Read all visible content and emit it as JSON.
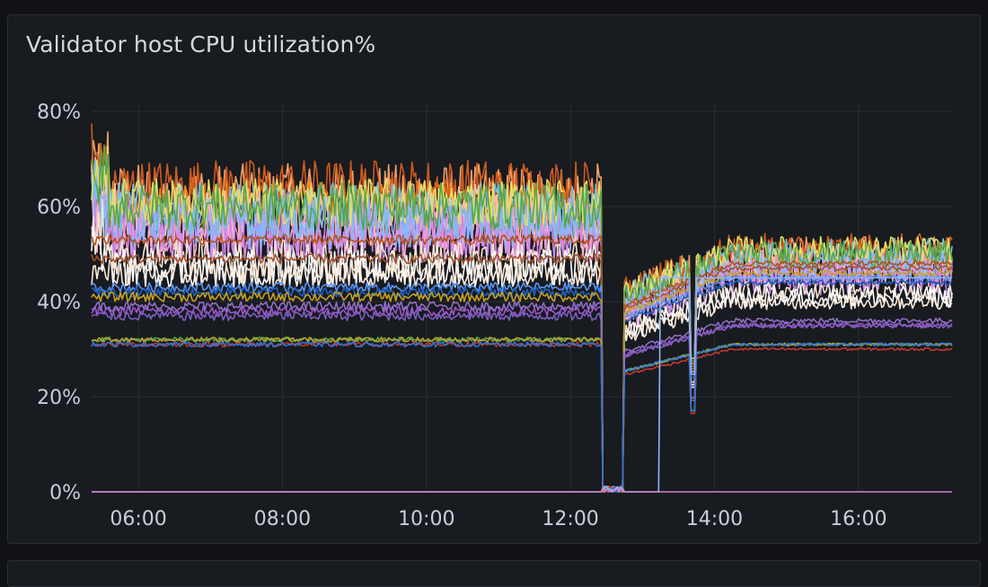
{
  "panel": {
    "title": "Validator host CPU utilization%"
  },
  "chart_data": {
    "type": "line",
    "title": "Validator host CPU utilization%",
    "xlabel": "",
    "ylabel": "",
    "x_unit": "hour of day",
    "xlim": [
      5.35,
      17.3
    ],
    "ylim": [
      0,
      80
    ],
    "x_ticks": [
      {
        "value": 6,
        "label": "06:00"
      },
      {
        "value": 8,
        "label": "08:00"
      },
      {
        "value": 10,
        "label": "10:00"
      },
      {
        "value": 12,
        "label": "12:00"
      },
      {
        "value": 14,
        "label": "14:00"
      },
      {
        "value": 16,
        "label": "16:00"
      }
    ],
    "y_ticks": [
      {
        "value": 0,
        "label": "0%"
      },
      {
        "value": 20,
        "label": "20%"
      },
      {
        "value": 40,
        "label": "40%"
      },
      {
        "value": 60,
        "label": "60%"
      },
      {
        "value": 80,
        "label": "80%"
      }
    ],
    "grid": true,
    "legend": "none",
    "outage_window": [
      12.45,
      12.75
    ],
    "series": [
      {
        "color": "#f2a36b",
        "before": 62,
        "after": 50,
        "noise": 7
      },
      {
        "color": "#ff7f0e",
        "before": 60,
        "after": 49,
        "noise": 6
      },
      {
        "color": "#d05a1e",
        "before": 64,
        "after": 51,
        "noise": 6
      },
      {
        "color": "#f6c7a0",
        "before": 58,
        "after": 48,
        "noise": 7
      },
      {
        "color": "#ffb0d0",
        "before": 56,
        "after": 47,
        "noise": 7
      },
      {
        "color": "#e58fe0",
        "before": 54,
        "after": 46,
        "noise": 6
      },
      {
        "color": "#c78be8",
        "before": 55,
        "after": 45,
        "noise": 7
      },
      {
        "color": "#73bfe0",
        "before": 59,
        "after": 50,
        "noise": 6
      },
      {
        "color": "#8ab8ff",
        "before": 57,
        "after": 48,
        "noise": 6
      },
      {
        "color": "#e0e06a",
        "before": 61,
        "after": 51,
        "noise": 5
      },
      {
        "color": "#56a64b",
        "before": 60,
        "after": 50,
        "noise": 5
      },
      {
        "color": "#f4e3d4",
        "before": 49,
        "after": 42,
        "noise": 4
      },
      {
        "color": "#ffffff",
        "before": 47,
        "after": 41,
        "noise": 4
      },
      {
        "color": "#fce9da",
        "before": 46,
        "after": 40,
        "noise": 3
      },
      {
        "color": "#b5501a",
        "before": 53,
        "after": 48,
        "noise": 1
      },
      {
        "color": "#a0522d",
        "before": 49,
        "after": 47,
        "noise": 1
      },
      {
        "color": "#5794f2",
        "before": 43,
        "after": 45,
        "noise": 1
      },
      {
        "color": "#1f60c4",
        "before": 42,
        "after": 44,
        "noise": 1
      },
      {
        "color": "#c4a020",
        "before": 41,
        "after": 46,
        "noise": 1
      },
      {
        "color": "#a352cc",
        "before": 38,
        "after": 35,
        "noise": 1
      },
      {
        "color": "#7b5fbf",
        "before": 37,
        "after": 35,
        "noise": 1
      },
      {
        "color": "#8e6fc6",
        "before": 39,
        "after": 36,
        "noise": 1
      },
      {
        "color": "#56a64b",
        "before": 32,
        "after": 31,
        "noise": 0.5
      },
      {
        "color": "#b8a030",
        "before": 32,
        "after": 31,
        "noise": 0.5
      },
      {
        "color": "#c0392b",
        "before": 31,
        "after": 30,
        "noise": 0.5
      },
      {
        "color": "#3274d9",
        "before": 31,
        "after": 31,
        "noise": 0.5
      },
      {
        "color": "#8ab8ff",
        "before": 0,
        "after": 0,
        "noise": 0,
        "recover_at": 13.25,
        "after2": 45
      },
      {
        "color": "#d683ce",
        "before": 0,
        "after": 0,
        "noise": 0
      }
    ]
  }
}
